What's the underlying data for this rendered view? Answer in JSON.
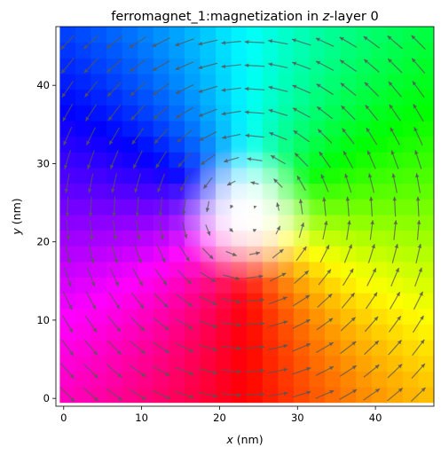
{
  "chart_data": {
    "type": "heatmap",
    "title_parts": [
      "ferromagnet_1:magnetization in ",
      "z",
      "-layer 0"
    ],
    "xlabel_parts": [
      "x",
      " (nm)"
    ],
    "ylabel_parts": [
      "y",
      " (nm)"
    ],
    "xlim": [
      -1,
      47.5
    ],
    "ylim": [
      -1,
      47.5
    ],
    "x_ticks": [
      0,
      10,
      20,
      30,
      40
    ],
    "y_ticks": [
      0,
      10,
      20,
      30,
      40
    ],
    "grid": false,
    "colormap": "HSL in-plane direction, lightness from out-of-plane component",
    "vortex_core": {
      "x": 23.5,
      "y": 23.5,
      "polarity": "up"
    },
    "circulation": "counter-clockwise",
    "arrow_color": "#555555",
    "arrow_grid": {
      "x_start": 0.5,
      "y_start": 0.5,
      "spacing": 3,
      "nx": 16,
      "ny": 16
    }
  }
}
